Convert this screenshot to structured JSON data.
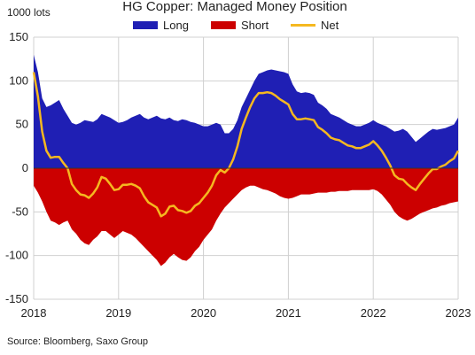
{
  "chart_data": {
    "type": "area",
    "title": "HG Copper: Managed Money Position",
    "ylabel": "1000 lots",
    "source": "Source:  Bloomberg,  Saxo Group",
    "ylim": [
      -150,
      150
    ],
    "xlim": [
      2018,
      2023
    ],
    "y_ticks": [
      "150",
      "100",
      "50",
      "0",
      "-50",
      "-100",
      "-150"
    ],
    "x_ticks": [
      "2018",
      "2019",
      "2020",
      "2021",
      "2022",
      "2023"
    ],
    "grid": true,
    "legend_position": "top",
    "x": [
      2018.0,
      2018.05,
      2018.1,
      2018.15,
      2018.2,
      2018.25,
      2018.3,
      2018.35,
      2018.4,
      2018.45,
      2018.5,
      2018.55,
      2018.6,
      2018.65,
      2018.7,
      2018.75,
      2018.8,
      2018.85,
      2018.9,
      2018.95,
      2019.0,
      2019.05,
      2019.1,
      2019.15,
      2019.2,
      2019.25,
      2019.3,
      2019.35,
      2019.4,
      2019.45,
      2019.5,
      2019.55,
      2019.6,
      2019.65,
      2019.7,
      2019.75,
      2019.8,
      2019.85,
      2019.9,
      2019.95,
      2020.0,
      2020.05,
      2020.1,
      2020.15,
      2020.2,
      2020.25,
      2020.3,
      2020.35,
      2020.4,
      2020.45,
      2020.5,
      2020.55,
      2020.6,
      2020.65,
      2020.7,
      2020.75,
      2020.8,
      2020.85,
      2020.9,
      2020.95,
      2021.0,
      2021.05,
      2021.1,
      2021.15,
      2021.2,
      2021.25,
      2021.3,
      2021.35,
      2021.4,
      2021.45,
      2021.5,
      2021.55,
      2021.6,
      2021.65,
      2021.7,
      2021.75,
      2021.8,
      2021.85,
      2021.9,
      2021.95,
      2022.0,
      2022.05,
      2022.1,
      2022.15,
      2022.2,
      2022.25,
      2022.3,
      2022.35,
      2022.4,
      2022.45,
      2022.5,
      2022.55,
      2022.6,
      2022.65,
      2022.7,
      2022.75,
      2022.8,
      2022.85,
      2022.9,
      2022.95,
      2023.0
    ],
    "series": [
      {
        "name": "Long",
        "color": "#1f1fb4",
        "values": [
          130,
          110,
          80,
          70,
          72,
          75,
          78,
          68,
          60,
          52,
          50,
          52,
          55,
          54,
          53,
          56,
          62,
          60,
          58,
          55,
          52,
          53,
          55,
          58,
          60,
          62,
          58,
          56,
          58,
          60,
          57,
          56,
          58,
          55,
          54,
          56,
          55,
          53,
          52,
          50,
          48,
          48,
          50,
          52,
          50,
          40,
          40,
          45,
          55,
          70,
          80,
          90,
          100,
          108,
          110,
          112,
          113,
          112,
          111,
          110,
          108,
          96,
          88,
          86,
          87,
          86,
          84,
          75,
          72,
          68,
          62,
          60,
          58,
          55,
          52,
          50,
          48,
          48,
          50,
          52,
          55,
          52,
          50,
          48,
          45,
          42,
          43,
          45,
          42,
          36,
          30,
          34,
          38,
          42,
          45,
          44,
          45,
          46,
          48,
          50,
          58
        ]
      },
      {
        "name": "Short",
        "color": "#cc0000",
        "values": [
          -20,
          -28,
          -38,
          -50,
          -60,
          -62,
          -65,
          -62,
          -60,
          -70,
          -75,
          -82,
          -86,
          -88,
          -82,
          -78,
          -72,
          -72,
          -76,
          -80,
          -76,
          -72,
          -74,
          -76,
          -80,
          -85,
          -90,
          -95,
          -100,
          -105,
          -112,
          -108,
          -102,
          -98,
          -102,
          -105,
          -106,
          -102,
          -95,
          -90,
          -82,
          -76,
          -70,
          -60,
          -52,
          -45,
          -40,
          -35,
          -30,
          -25,
          -22,
          -20,
          -20,
          -22,
          -24,
          -25,
          -27,
          -29,
          -32,
          -34,
          -35,
          -34,
          -32,
          -30,
          -30,
          -30,
          -29,
          -28,
          -28,
          -28,
          -27,
          -27,
          -26,
          -26,
          -26,
          -25,
          -25,
          -25,
          -25,
          -25,
          -24,
          -26,
          -30,
          -36,
          -42,
          -50,
          -55,
          -58,
          -60,
          -58,
          -55,
          -52,
          -50,
          -48,
          -46,
          -45,
          -43,
          -42,
          -40,
          -39,
          -38
        ]
      },
      {
        "name": "Net",
        "color": "#f5b820",
        "values": [
          110,
          82,
          42,
          20,
          12,
          13,
          13,
          6,
          0,
          -18,
          -25,
          -30,
          -31,
          -34,
          -29,
          -22,
          -10,
          -12,
          -18,
          -25,
          -24,
          -19,
          -19,
          -18,
          -20,
          -23,
          -32,
          -39,
          -42,
          -45,
          -55,
          -52,
          -44,
          -43,
          -48,
          -49,
          -51,
          -49,
          -43,
          -40,
          -34,
          -28,
          -20,
          -8,
          -2,
          -5,
          0,
          10,
          25,
          45,
          58,
          70,
          80,
          86,
          86,
          87,
          86,
          83,
          79,
          76,
          73,
          62,
          56,
          56,
          57,
          56,
          55,
          47,
          44,
          40,
          35,
          33,
          32,
          29,
          26,
          25,
          23,
          23,
          25,
          27,
          31,
          26,
          20,
          12,
          3,
          -8,
          -12,
          -13,
          -18,
          -22,
          -25,
          -18,
          -12,
          -6,
          -1,
          -1,
          2,
          4,
          8,
          11,
          20
        ]
      }
    ]
  }
}
